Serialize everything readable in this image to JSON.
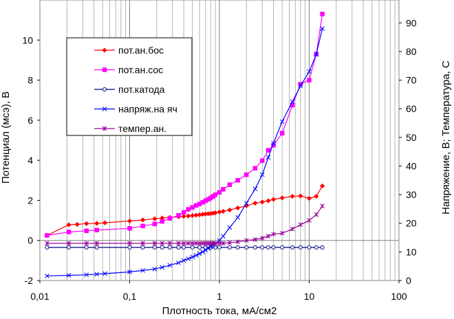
{
  "chart_data": {
    "type": "line",
    "title": "",
    "xlabel": "Плотность тока, мА/см2",
    "ylabel_left": "Потенциал (мсэ), В",
    "ylabel_right": "Напряжение, В; Температура, С",
    "xscale": "log",
    "xlim": [
      0.01,
      100
    ],
    "ylim_left": [
      -2,
      12
    ],
    "ylim_right": [
      0,
      98
    ],
    "x_tick_labels": [
      "0,01",
      "0,1",
      "1",
      "10",
      "100"
    ],
    "y_left_ticks": [
      -2,
      0,
      2,
      4,
      6,
      8,
      10
    ],
    "y_right_ticks": [
      0,
      10,
      20,
      30,
      40,
      50,
      60,
      70,
      80,
      90
    ],
    "grid": true,
    "legend_position": "top-left",
    "series": [
      {
        "name": "пот.ан.бос",
        "axis": "left",
        "color": "#ff0000",
        "marker": "diamond",
        "x": [
          0.012,
          0.021,
          0.026,
          0.033,
          0.043,
          0.053,
          0.1,
          0.14,
          0.19,
          0.23,
          0.28,
          0.35,
          0.4,
          0.45,
          0.5,
          0.55,
          0.6,
          0.65,
          0.7,
          0.75,
          0.8,
          0.85,
          0.9,
          1.0,
          1.1,
          1.3,
          1.6,
          2.0,
          2.5,
          3.0,
          3.5,
          4.0,
          5.0,
          6.5,
          8.0,
          10.0,
          12.0,
          14.0
        ],
        "y": [
          0.25,
          0.78,
          0.8,
          0.84,
          0.85,
          0.88,
          0.97,
          1.02,
          1.08,
          1.12,
          1.15,
          1.18,
          1.2,
          1.22,
          1.24,
          1.26,
          1.28,
          1.3,
          1.32,
          1.33,
          1.34,
          1.36,
          1.38,
          1.42,
          1.45,
          1.52,
          1.62,
          1.73,
          1.86,
          1.92,
          1.98,
          2.05,
          2.12,
          2.2,
          2.22,
          2.1,
          2.2,
          2.72
        ]
      },
      {
        "name": "пот.ан.сос",
        "axis": "left",
        "color": "#ff00ff",
        "marker": "square",
        "x": [
          0.012,
          0.021,
          0.033,
          0.043,
          0.1,
          0.14,
          0.19,
          0.23,
          0.28,
          0.35,
          0.4,
          0.45,
          0.5,
          0.55,
          0.6,
          0.65,
          0.7,
          0.75,
          0.8,
          0.85,
          0.9,
          1.0,
          1.1,
          1.3,
          1.6,
          2.0,
          2.5,
          3.0,
          3.5,
          4.0,
          5.0,
          6.5,
          8.0,
          10.0,
          12.0,
          14.0
        ],
        "y": [
          0.25,
          0.42,
          0.48,
          0.52,
          0.6,
          0.72,
          0.82,
          0.95,
          1.1,
          1.25,
          1.4,
          1.55,
          1.65,
          1.75,
          1.82,
          1.9,
          1.98,
          2.05,
          2.12,
          2.2,
          2.28,
          2.4,
          2.55,
          2.78,
          3.0,
          3.28,
          3.6,
          3.98,
          4.5,
          4.75,
          5.35,
          6.75,
          7.8,
          8.0,
          9.3,
          11.3
        ]
      },
      {
        "name": "пот.катода",
        "axis": "left",
        "color": "#000080",
        "marker": "circle",
        "x": [
          0.012,
          0.021,
          0.033,
          0.043,
          0.1,
          0.14,
          0.19,
          0.23,
          0.28,
          0.35,
          0.4,
          0.5,
          0.6,
          0.7,
          0.8,
          0.9,
          1.0,
          1.3,
          1.6,
          2.0,
          2.5,
          3.0,
          3.5,
          4.0,
          5.0,
          6.5,
          8.0,
          10.0,
          12.0,
          14.0
        ],
        "y": [
          -0.35,
          -0.35,
          -0.35,
          -0.35,
          -0.35,
          -0.35,
          -0.35,
          -0.35,
          -0.35,
          -0.35,
          -0.35,
          -0.35,
          -0.35,
          -0.35,
          -0.35,
          -0.35,
          -0.35,
          -0.35,
          -0.35,
          -0.35,
          -0.35,
          -0.35,
          -0.35,
          -0.35,
          -0.35,
          -0.35,
          -0.35,
          -0.35,
          -0.35,
          -0.35
        ]
      },
      {
        "name": "напряж.на яч",
        "axis": "right",
        "color": "#0000ff",
        "marker": "x",
        "x": [
          0.012,
          0.021,
          0.033,
          0.043,
          0.053,
          0.1,
          0.14,
          0.19,
          0.23,
          0.28,
          0.35,
          0.4,
          0.45,
          0.5,
          0.55,
          0.6,
          0.65,
          0.7,
          0.75,
          0.8,
          0.85,
          0.9,
          1.0,
          1.1,
          1.3,
          1.6,
          2.0,
          2.5,
          3.0,
          3.5,
          4.0,
          5.0,
          6.5,
          8.0,
          10.0,
          12.0,
          14.0
        ],
        "y": [
          1.6,
          1.8,
          2.0,
          2.2,
          2.4,
          3.0,
          3.5,
          4.0,
          4.6,
          5.3,
          6.2,
          7.0,
          7.6,
          8.2,
          8.8,
          9.4,
          10.0,
          10.6,
          11.2,
          11.8,
          12.3,
          12.9,
          14.0,
          15.5,
          18.5,
          22.0,
          27.0,
          32.0,
          37.0,
          43.0,
          48.0,
          55.5,
          62.5,
          68.0,
          73.0,
          79.0,
          88.0
        ]
      },
      {
        "name": "темпер.ан.",
        "axis": "right",
        "color": "#990099",
        "marker": "star",
        "x": [
          0.012,
          0.021,
          0.033,
          0.043,
          0.1,
          0.14,
          0.19,
          0.23,
          0.28,
          0.35,
          0.4,
          0.45,
          0.5,
          0.55,
          0.6,
          0.65,
          0.7,
          0.75,
          0.8,
          0.85,
          0.9,
          1.0,
          1.1,
          1.3,
          1.6,
          2.0,
          2.5,
          3.0,
          3.5,
          4.0,
          5.0,
          6.5,
          8.0,
          10.0,
          12.0,
          14.0
        ],
        "y": [
          13.0,
          13.0,
          13.0,
          13.0,
          13.0,
          13.0,
          13.0,
          13.0,
          13.0,
          13.0,
          13.0,
          13.0,
          13.0,
          13.0,
          13.0,
          13.0,
          13.0,
          13.0,
          13.0,
          13.0,
          13.0,
          13.0,
          13.0,
          13.2,
          13.5,
          14.0,
          14.3,
          14.8,
          15.5,
          16.2,
          16.5,
          18.0,
          19.5,
          21.0,
          23.0,
          26.0
        ]
      }
    ]
  }
}
